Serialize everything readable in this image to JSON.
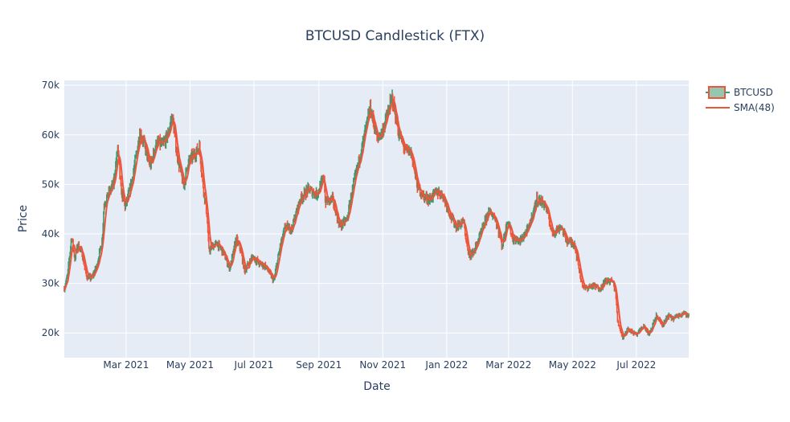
{
  "chart_data": {
    "type": "candlestick",
    "title": "BTCUSD Candlestick (FTX)",
    "xlabel": "Date",
    "ylabel": "Price",
    "x_range": [
      "2021-01-01",
      "2022-08-20"
    ],
    "ylim": [
      15000,
      71000
    ],
    "x_ticks": [
      {
        "date": "2021-03-01",
        "label": "Mar 2021"
      },
      {
        "date": "2021-05-01",
        "label": "May 2021"
      },
      {
        "date": "2021-07-01",
        "label": "Jul 2021"
      },
      {
        "date": "2021-09-01",
        "label": "Sep 2021"
      },
      {
        "date": "2021-11-01",
        "label": "Nov 2021"
      },
      {
        "date": "2022-01-01",
        "label": "Jan 2022"
      },
      {
        "date": "2022-03-01",
        "label": "Mar 2022"
      },
      {
        "date": "2022-05-01",
        "label": "May 2022"
      },
      {
        "date": "2022-07-01",
        "label": "Jul 2022"
      }
    ],
    "y_ticks": [
      {
        "value": 20000,
        "label": "20k"
      },
      {
        "value": 30000,
        "label": "30k"
      },
      {
        "value": 40000,
        "label": "40k"
      },
      {
        "value": 50000,
        "label": "50k"
      },
      {
        "value": 60000,
        "label": "60k"
      },
      {
        "value": 70000,
        "label": "70k"
      }
    ],
    "grid": true,
    "legend_position": "top-right",
    "series": [
      {
        "name": "BTCUSD",
        "kind": "candlestick",
        "up_color": "#3d9970",
        "down_color": "#ef553b"
      },
      {
        "name": "SMA(48)",
        "kind": "line",
        "color": "#ef553b"
      }
    ],
    "price_path": [
      [
        "2021-01-01",
        29000
      ],
      [
        "2021-01-04",
        31500
      ],
      [
        "2021-01-08",
        39500
      ],
      [
        "2021-01-11",
        35000
      ],
      [
        "2021-01-14",
        38000
      ],
      [
        "2021-01-18",
        36000
      ],
      [
        "2021-01-22",
        31500
      ],
      [
        "2021-01-27",
        31000
      ],
      [
        "2021-02-01",
        33500
      ],
      [
        "2021-02-06",
        38500
      ],
      [
        "2021-02-08",
        46000
      ],
      [
        "2021-02-12",
        48000
      ],
      [
        "2021-02-17",
        50000
      ],
      [
        "2021-02-21",
        57500
      ],
      [
        "2021-02-24",
        49000
      ],
      [
        "2021-02-28",
        45500
      ],
      [
        "2021-03-05",
        49000
      ],
      [
        "2021-03-10",
        55000
      ],
      [
        "2021-03-14",
        60500
      ],
      [
        "2021-03-18",
        58500
      ],
      [
        "2021-03-24",
        53500
      ],
      [
        "2021-03-30",
        58500
      ],
      [
        "2021-04-05",
        58000
      ],
      [
        "2021-04-10",
        60000
      ],
      [
        "2021-04-14",
        64000
      ],
      [
        "2021-04-18",
        57000
      ],
      [
        "2021-04-21",
        53500
      ],
      [
        "2021-04-25",
        49500
      ],
      [
        "2021-04-29",
        54500
      ],
      [
        "2021-05-05",
        56000
      ],
      [
        "2021-05-10",
        57500
      ],
      [
        "2021-05-13",
        50500
      ],
      [
        "2021-05-17",
        44000
      ],
      [
        "2021-05-19",
        36500
      ],
      [
        "2021-05-22",
        37500
      ],
      [
        "2021-05-27",
        38000
      ],
      [
        "2021-06-01",
        36500
      ],
      [
        "2021-06-08",
        33000
      ],
      [
        "2021-06-14",
        39000
      ],
      [
        "2021-06-18",
        37000
      ],
      [
        "2021-06-22",
        32500
      ],
      [
        "2021-06-30",
        35500
      ],
      [
        "2021-07-06",
        34000
      ],
      [
        "2021-07-12",
        33500
      ],
      [
        "2021-07-20",
        30500
      ],
      [
        "2021-07-26",
        37500
      ],
      [
        "2021-07-31",
        41500
      ],
      [
        "2021-08-06",
        41000
      ],
      [
        "2021-08-14",
        47000
      ],
      [
        "2021-08-22",
        49000
      ],
      [
        "2021-08-30",
        48000
      ],
      [
        "2021-09-06",
        51500
      ],
      [
        "2021-09-07",
        46500
      ],
      [
        "2021-09-14",
        47000
      ],
      [
        "2021-09-21",
        41500
      ],
      [
        "2021-09-28",
        43000
      ],
      [
        "2021-10-02",
        48000
      ],
      [
        "2021-10-10",
        55500
      ],
      [
        "2021-10-15",
        60500
      ],
      [
        "2021-10-20",
        65500
      ],
      [
        "2021-10-27",
        59000
      ],
      [
        "2021-11-01",
        61000
      ],
      [
        "2021-11-10",
        67500
      ],
      [
        "2021-11-16",
        60500
      ],
      [
        "2021-11-22",
        57000
      ],
      [
        "2021-11-28",
        56500
      ],
      [
        "2021-12-04",
        49500
      ],
      [
        "2021-12-10",
        47500
      ],
      [
        "2021-12-16",
        47000
      ],
      [
        "2021-12-22",
        48500
      ],
      [
        "2021-12-28",
        48000
      ],
      [
        "2022-01-05",
        43500
      ],
      [
        "2022-01-10",
        41500
      ],
      [
        "2022-01-17",
        42500
      ],
      [
        "2022-01-22",
        35500
      ],
      [
        "2022-01-27",
        36500
      ],
      [
        "2022-02-05",
        41500
      ],
      [
        "2022-02-10",
        44500
      ],
      [
        "2022-02-16",
        43500
      ],
      [
        "2022-02-23",
        37500
      ],
      [
        "2022-02-28",
        43000
      ],
      [
        "2022-03-05",
        39000
      ],
      [
        "2022-03-12",
        38500
      ],
      [
        "2022-03-20",
        41000
      ],
      [
        "2022-03-28",
        47000
      ],
      [
        "2022-04-05",
        46000
      ],
      [
        "2022-04-12",
        40000
      ],
      [
        "2022-04-20",
        41500
      ],
      [
        "2022-04-26",
        38500
      ],
      [
        "2022-05-03",
        38000
      ],
      [
        "2022-05-09",
        31000
      ],
      [
        "2022-05-12",
        29000
      ],
      [
        "2022-05-20",
        29500
      ],
      [
        "2022-05-28",
        29000
      ],
      [
        "2022-06-01",
        30500
      ],
      [
        "2022-06-08",
        30500
      ],
      [
        "2022-06-11",
        28500
      ],
      [
        "2022-06-13",
        22500
      ],
      [
        "2022-06-18",
        19000
      ],
      [
        "2022-06-23",
        21000
      ],
      [
        "2022-07-01",
        19500
      ],
      [
        "2022-07-08",
        21500
      ],
      [
        "2022-07-13",
        19500
      ],
      [
        "2022-07-20",
        23500
      ],
      [
        "2022-07-26",
        21500
      ],
      [
        "2022-07-31",
        23500
      ],
      [
        "2022-08-05",
        22900
      ],
      [
        "2022-08-10",
        23500
      ],
      [
        "2022-08-15",
        24200
      ],
      [
        "2022-08-20",
        23300
      ]
    ]
  },
  "colors": {
    "plot_background": "#e5ecf6",
    "gridline": "#ffffff",
    "up": "#3d9970",
    "down": "#ef553b",
    "sma": "#ef553b",
    "text": "#2a3f5f"
  }
}
